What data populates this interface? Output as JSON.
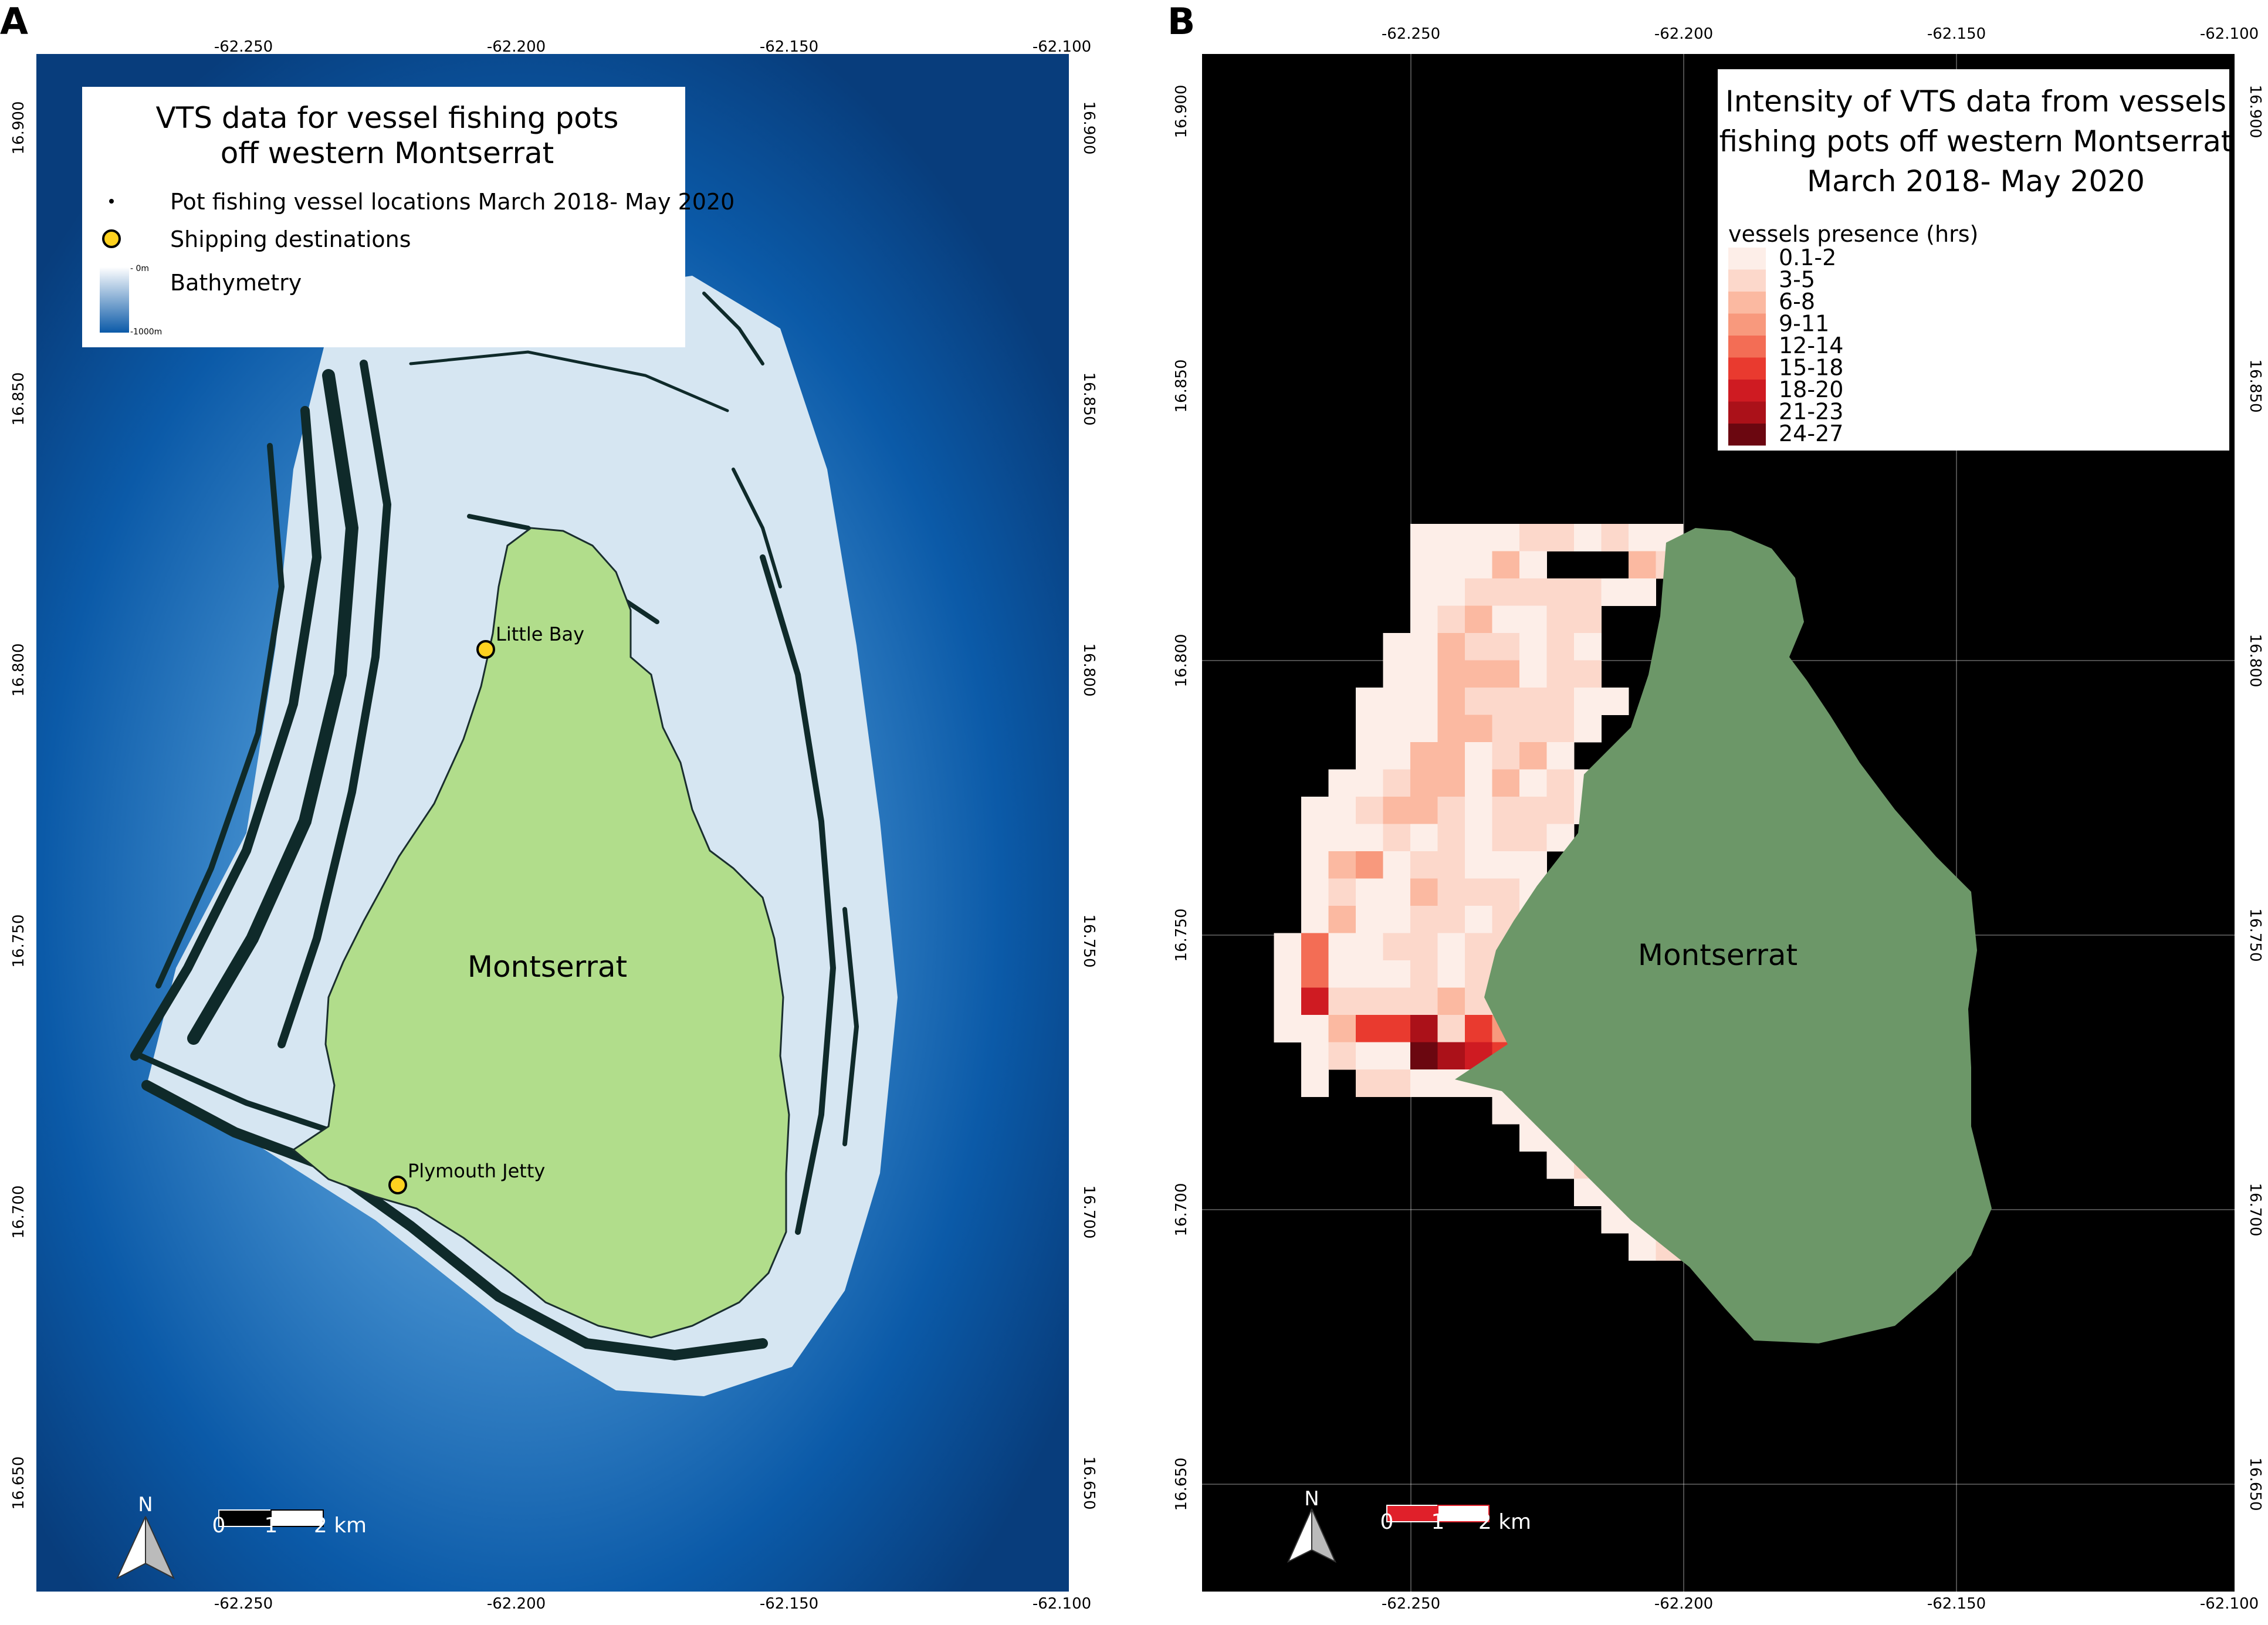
{
  "panel_a": {
    "letter": "A",
    "legend": {
      "title_line1": "VTS data for vessel fishing pots",
      "title_line2": "off western Montserrat",
      "items": {
        "vessel_points": "Pot fishing vessel locations March 2018- May 2020",
        "shipping_destinations": "Shipping destinations",
        "bathymetry": "Bathymetry"
      },
      "bathymetry_top": "- 0m",
      "bathymetry_bottom": "-1000m",
      "bathymetry_colors": [
        "#ffffff",
        "#0b5aa8"
      ]
    },
    "x_ticks": [
      "-62.250",
      "-62.200",
      "-62.150",
      "-62.100"
    ],
    "y_ticks": [
      "16.900",
      "16.850",
      "16.800",
      "16.750",
      "16.700",
      "16.650"
    ],
    "places": {
      "little_bay": "Little Bay",
      "plymouth_jetty": "Plymouth Jetty"
    },
    "island_label": "Montserrat",
    "scale_labels": [
      "0",
      "1",
      "2 km"
    ],
    "north_label": "N",
    "colors": {
      "sea_deep": "#0b4f96",
      "sea_shallow": "#d6e6f2",
      "island": "#b1dd8b",
      "tracks": "#0f2a2a",
      "destination": "#ffd21f"
    }
  },
  "panel_b": {
    "letter": "B",
    "legend": {
      "title_line1": "Intensity of VTS data from vessels",
      "title_line2": "fishing pots off western Montserrat",
      "title_line3": "March 2018- May 2020",
      "subtitle": "vessels presence (hrs)",
      "classes": [
        {
          "label": "0.1-2",
          "color": "#fdeee8"
        },
        {
          "label": "3-5",
          "color": "#fcd8cb"
        },
        {
          "label": "6-8",
          "color": "#fbb9a1"
        },
        {
          "label": "9-11",
          "color": "#f8997d"
        },
        {
          "label": "12-14",
          "color": "#f36d55"
        },
        {
          "label": "15-18",
          "color": "#e93a2f"
        },
        {
          "label": "18-20",
          "color": "#cf1b22"
        },
        {
          "label": "21-23",
          "color": "#ab1119"
        },
        {
          "label": "24-27",
          "color": "#6b0710"
        }
      ]
    },
    "x_ticks": [
      "-62.250",
      "-62.200",
      "-62.150",
      "-62.100"
    ],
    "y_ticks": [
      "16.900",
      "16.850",
      "16.800",
      "16.750",
      "16.700",
      "16.650"
    ],
    "island_label": "Montserrat",
    "scale_labels": [
      "0",
      "1",
      "2 km"
    ],
    "north_label": "N",
    "colors": {
      "background": "#000000",
      "island": "#6c9768",
      "scale_bar": "#e0202a"
    }
  }
}
